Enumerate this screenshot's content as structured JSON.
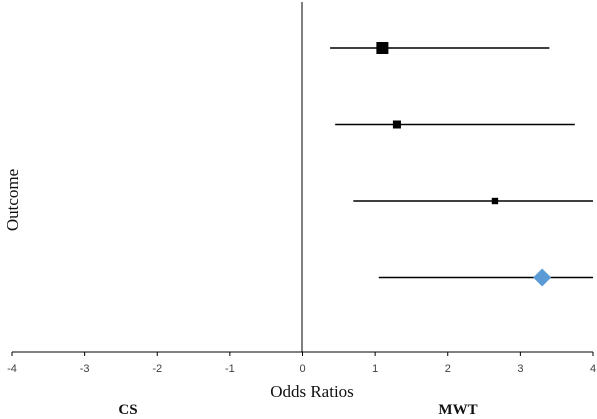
{
  "chart_data": {
    "type": "scatter",
    "subtype": "forest-plot",
    "title": "",
    "xlabel": "Odds Ratios",
    "ylabel": "Outcome",
    "xlim": [
      -4,
      4
    ],
    "xticks": [
      "-4",
      "-3",
      "-2",
      "-1",
      "0",
      "1",
      "2",
      "3",
      "4"
    ],
    "side_labels": {
      "left": "CS",
      "right": "MWT"
    },
    "grid": false,
    "legend": "none",
    "reference_line_x": 0,
    "rows": [
      {
        "estimate": 1.1,
        "lower": 0.38,
        "upper": 3.4,
        "marker": "square",
        "weight": 3
      },
      {
        "estimate": 1.3,
        "lower": 0.45,
        "upper": 3.75,
        "marker": "square",
        "weight": 2
      },
      {
        "estimate": 2.65,
        "lower": 0.7,
        "upper": 4.0,
        "marker": "square",
        "weight": 1.6
      },
      {
        "estimate": 3.3,
        "lower": 1.05,
        "upper": 4.0,
        "marker": "diamond",
        "weight": 3
      }
    ],
    "colors": {
      "point": "#000000",
      "summary": "#5b9bd5",
      "line": "#000000"
    }
  }
}
